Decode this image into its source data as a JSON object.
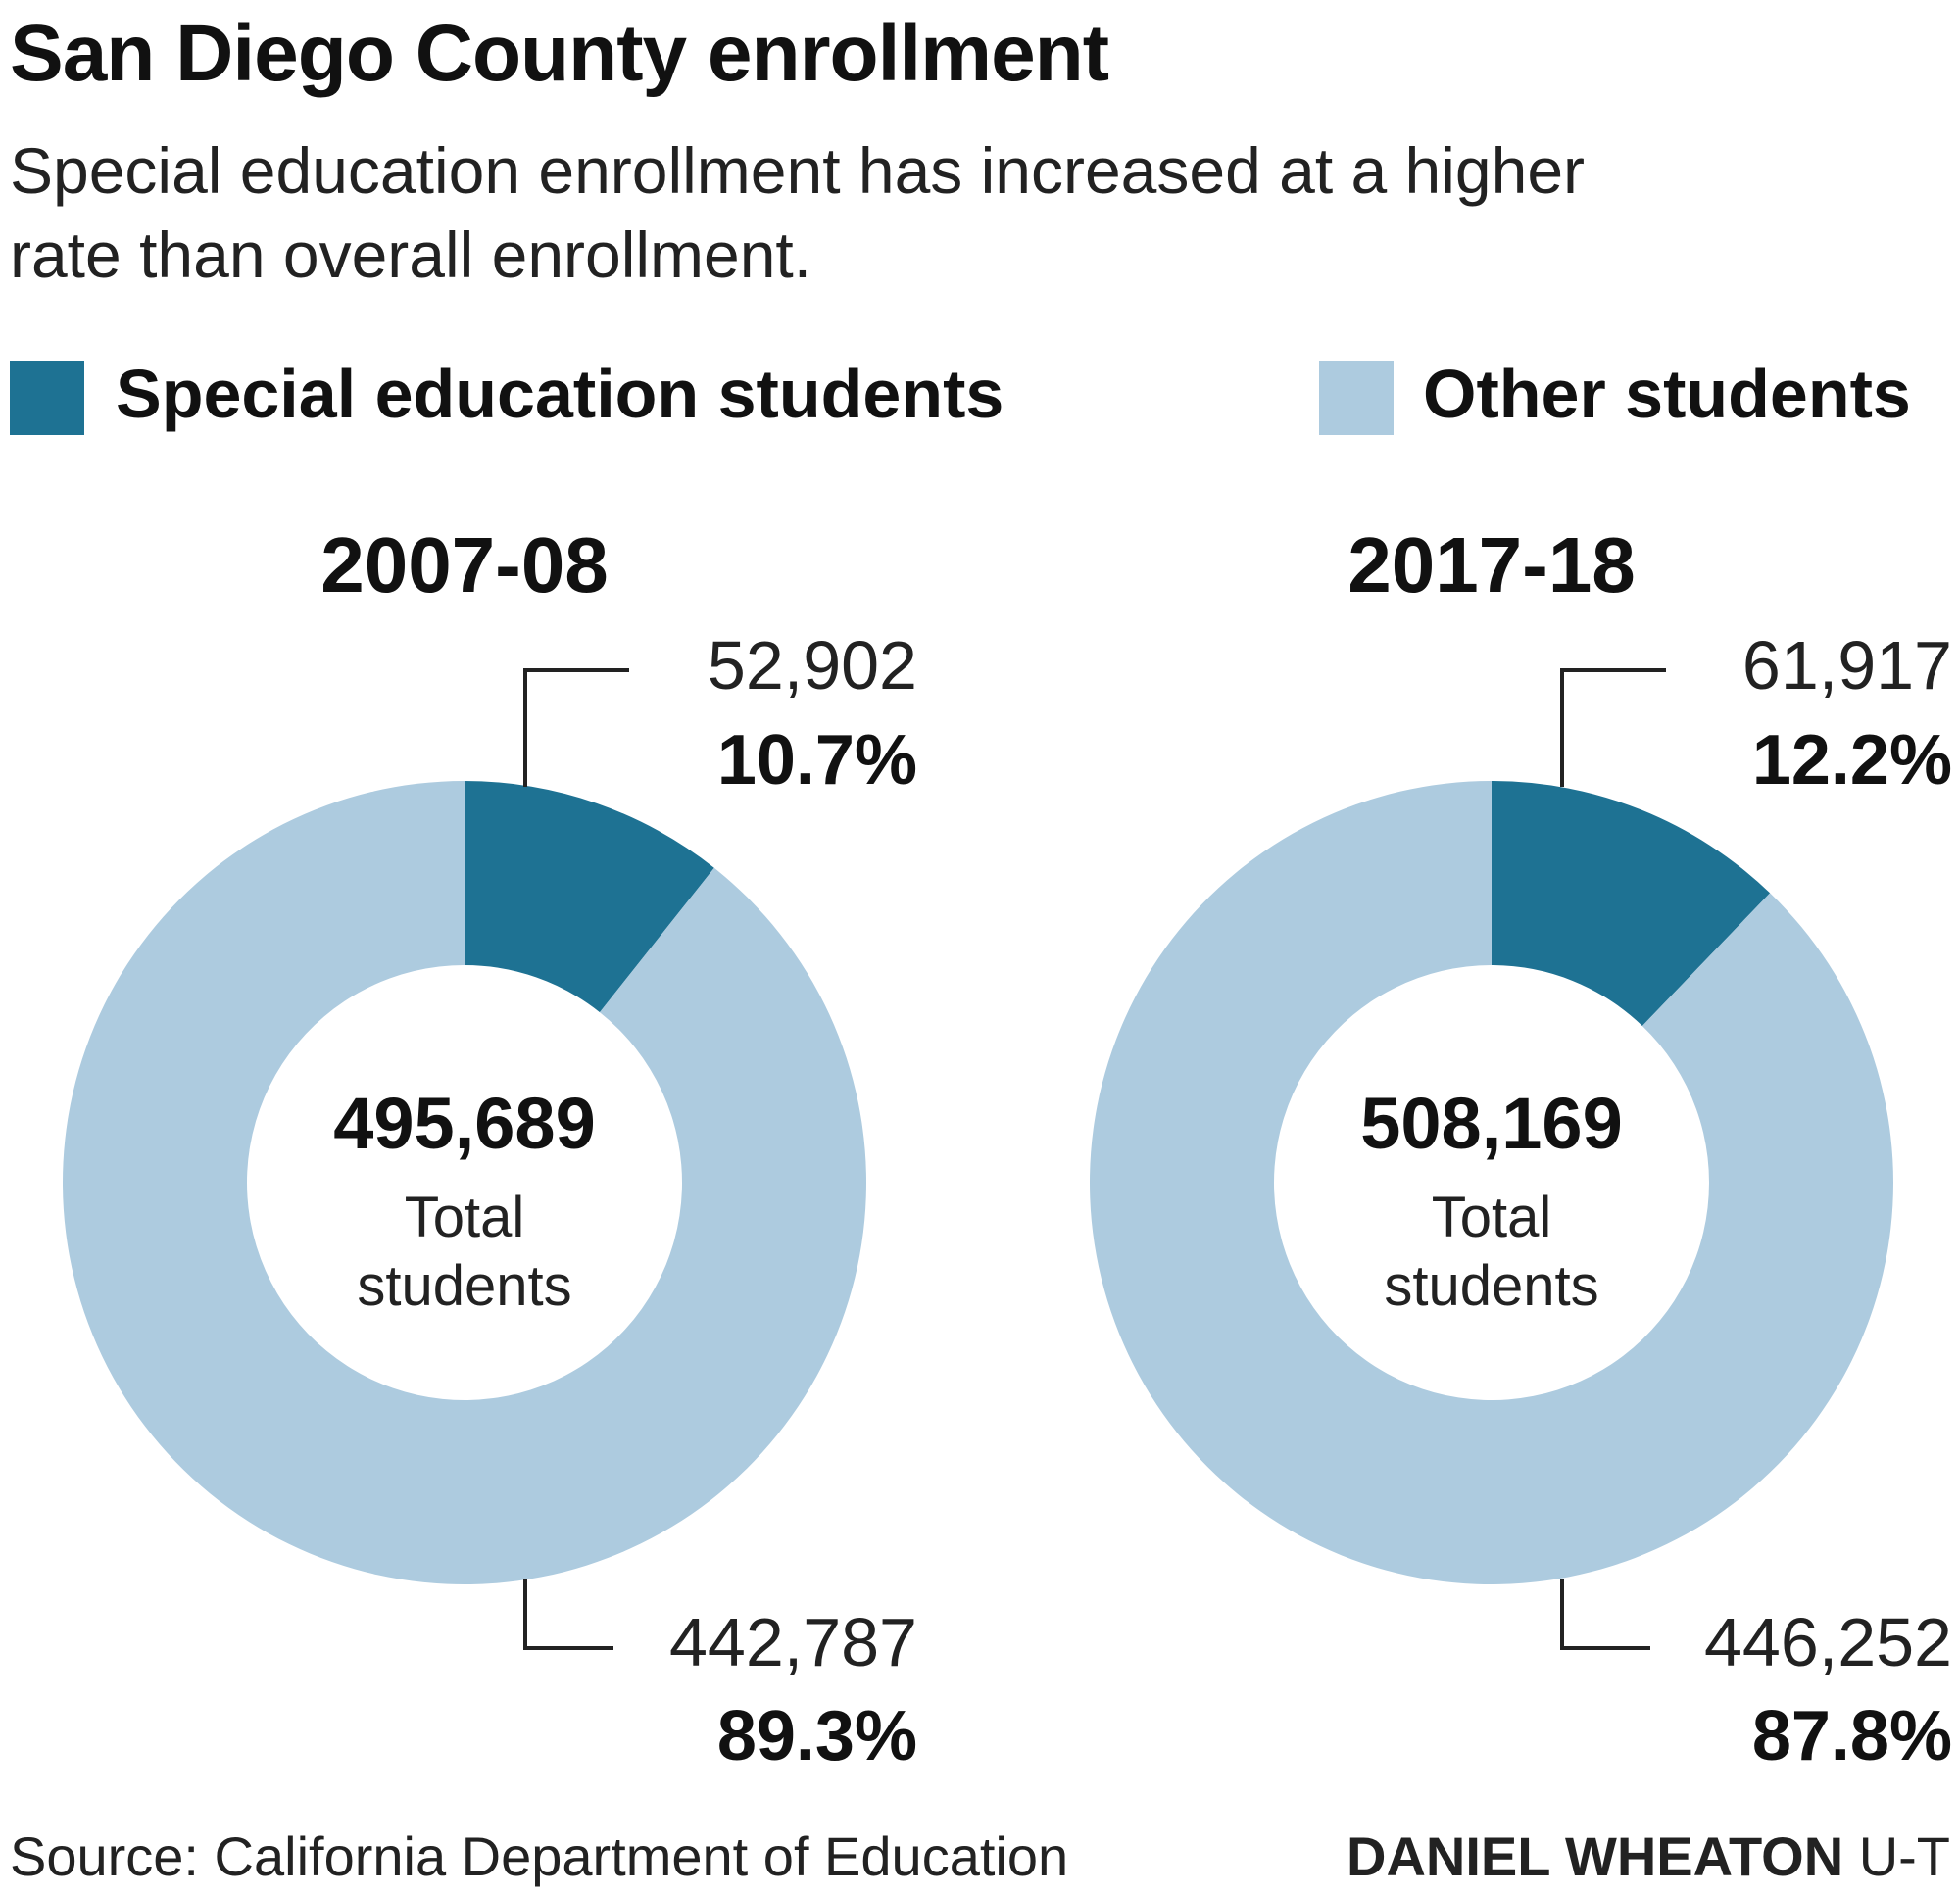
{
  "title": "San Diego County enrollment",
  "subtitle_line1": "Special education enrollment has increased at a higher",
  "subtitle_line2": "rate than overall enrollment.",
  "legend": [
    {
      "label": "Special education students",
      "color": "#1e7293"
    },
    {
      "label": "Other students",
      "color": "#adcbdf"
    }
  ],
  "source": "Source: California Department of Education",
  "credit_name": "DANIEL WHEATON",
  "credit_org": "U-T",
  "chart_data": [
    {
      "type": "pie",
      "title": "2007-08",
      "center_value": "495,689",
      "center_label_line1": "Total",
      "center_label_line2": "students",
      "slices": [
        {
          "name": "Special education students",
          "value": 52902,
          "value_label": "52,902",
          "percent_label": "10.7%"
        },
        {
          "name": "Other students",
          "value": 442787,
          "value_label": "442,787",
          "percent_label": "89.3%"
        }
      ]
    },
    {
      "type": "pie",
      "title": "2017-18",
      "center_value": "508,169",
      "center_label_line1": "Total",
      "center_label_line2": "students",
      "slices": [
        {
          "name": "Special education students",
          "value": 61917,
          "value_label": "61,917",
          "percent_label": "12.2%"
        },
        {
          "name": "Other students",
          "value": 446252,
          "value_label": "446,252",
          "percent_label": "87.8%"
        }
      ]
    }
  ]
}
